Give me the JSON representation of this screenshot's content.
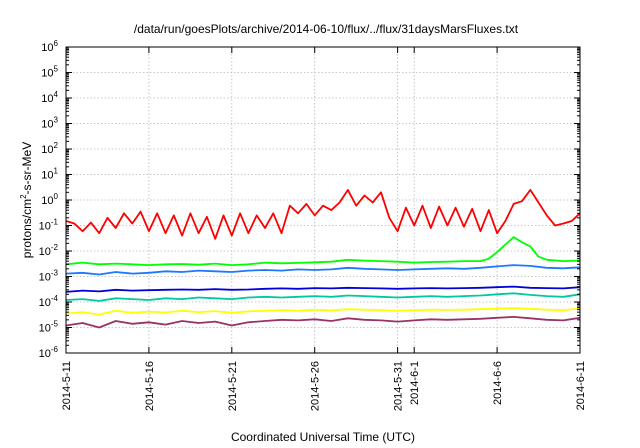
{
  "chart_data": {
    "type": "line",
    "title": "/data/run/goesPlots/archive/2014-06-10/flux/../flux/31daysMarsFluxes.txt",
    "xlabel": "Coordinated Universal Time (UTC)",
    "ylabel": {
      "base": "protons/cm",
      "sup": "2",
      "rest": "-s-sr-MeV"
    },
    "y_scale": "log",
    "ylim": [
      1e-06,
      1000000.0
    ],
    "xlim": [
      "2014-05-11",
      "2014-06-11"
    ],
    "grid": true,
    "legend": "none",
    "x_tick_labels": [
      "2014-5-11",
      "2014-5-16",
      "2014-5-21",
      "2014-5-26",
      "2014-5-31",
      "2014-6-1",
      "2014-6-6",
      "2014-6-11"
    ],
    "x_tick_days": [
      0,
      5,
      10,
      15,
      20,
      21,
      26,
      31
    ],
    "y_ticks": [
      {
        "value": 1e-06,
        "base": "10",
        "exp": "-6"
      },
      {
        "value": 1e-05,
        "base": "10",
        "exp": "-5"
      },
      {
        "value": 0.0001,
        "base": "10",
        "exp": "-4"
      },
      {
        "value": 0.001,
        "base": "10",
        "exp": "-3"
      },
      {
        "value": 0.01,
        "base": "10",
        "exp": "-2"
      },
      {
        "value": 0.1,
        "base": "10",
        "exp": "-1"
      },
      {
        "value": 1.0,
        "base": "10",
        "exp": "0"
      },
      {
        "value": 10.0,
        "base": "10",
        "exp": "1"
      },
      {
        "value": 100.0,
        "base": "10",
        "exp": "2"
      },
      {
        "value": 1000.0,
        "base": "10",
        "exp": "3"
      },
      {
        "value": 10000.0,
        "base": "10",
        "exp": "4"
      },
      {
        "value": 100000.0,
        "base": "10",
        "exp": "5"
      },
      {
        "value": 1000000.0,
        "base": "10",
        "exp": "6"
      }
    ],
    "series": [
      {
        "color": "#ff0000",
        "x": [
          0,
          0.5,
          1,
          1.5,
          2,
          2.5,
          3,
          3.5,
          4,
          4.5,
          5,
          5.5,
          6,
          6.5,
          7,
          7.5,
          8,
          8.5,
          9,
          9.5,
          10,
          10.5,
          11,
          11.5,
          12,
          12.5,
          13,
          13.5,
          14,
          14.5,
          15,
          15.5,
          16,
          16.5,
          17,
          17.5,
          18,
          18.5,
          19,
          19.5,
          20,
          20.5,
          21,
          21.5,
          22,
          22.5,
          23,
          23.5,
          24,
          24.5,
          25,
          25.5,
          26,
          26.5,
          27,
          27.5,
          28,
          28.5,
          29,
          29.5,
          30,
          30.5,
          31
        ],
        "y": [
          0.15,
          0.12,
          0.06,
          0.13,
          0.05,
          0.2,
          0.08,
          0.3,
          0.12,
          0.35,
          0.06,
          0.3,
          0.05,
          0.25,
          0.04,
          0.3,
          0.05,
          0.22,
          0.03,
          0.25,
          0.04,
          0.3,
          0.05,
          0.25,
          0.08,
          0.3,
          0.05,
          0.6,
          0.3,
          0.7,
          0.25,
          0.6,
          0.4,
          0.8,
          2.5,
          0.6,
          1.5,
          0.8,
          2.0,
          0.2,
          0.06,
          0.5,
          0.1,
          0.6,
          0.08,
          0.55,
          0.1,
          0.5,
          0.09,
          0.45,
          0.06,
          0.4,
          0.05,
          0.15,
          0.7,
          0.9,
          2.5,
          0.8,
          0.25,
          0.1,
          0.12,
          0.15,
          0.3
        ]
      },
      {
        "color": "#00ff00",
        "x": [
          0,
          1,
          2,
          3,
          4,
          5,
          6,
          7,
          8,
          9,
          10,
          11,
          12,
          13,
          14,
          15,
          16,
          17,
          18,
          19,
          20,
          21,
          22,
          23,
          24,
          25,
          25.5,
          26,
          26.5,
          27,
          27.5,
          28,
          28.5,
          29,
          30,
          31
        ],
        "y": [
          0.003,
          0.0035,
          0.003,
          0.0032,
          0.003,
          0.0028,
          0.003,
          0.0031,
          0.0029,
          0.0032,
          0.0028,
          0.003,
          0.0035,
          0.0033,
          0.0034,
          0.0036,
          0.0038,
          0.0045,
          0.0042,
          0.004,
          0.0038,
          0.0035,
          0.0037,
          0.0038,
          0.004,
          0.004,
          0.005,
          0.009,
          0.018,
          0.035,
          0.022,
          0.015,
          0.006,
          0.0045,
          0.004,
          0.0042
        ]
      },
      {
        "color": "#1e78ff",
        "x": [
          0,
          1,
          2,
          3,
          4,
          5,
          6,
          7,
          8,
          9,
          10,
          11,
          12,
          13,
          14,
          15,
          16,
          17,
          18,
          19,
          20,
          21,
          22,
          23,
          24,
          25,
          26,
          27,
          28,
          29,
          30,
          31
        ],
        "y": [
          0.0013,
          0.0014,
          0.0012,
          0.0015,
          0.0013,
          0.0014,
          0.0016,
          0.0015,
          0.0017,
          0.0016,
          0.0015,
          0.0017,
          0.0018,
          0.0017,
          0.0019,
          0.0018,
          0.0019,
          0.0022,
          0.002,
          0.0019,
          0.0018,
          0.0019,
          0.002,
          0.0021,
          0.002,
          0.0022,
          0.0025,
          0.0028,
          0.0026,
          0.0022,
          0.0021,
          0.0023
        ]
      },
      {
        "color": "#0000dd",
        "x": [
          0,
          1,
          2,
          3,
          4,
          5,
          6,
          7,
          8,
          9,
          10,
          11,
          12,
          13,
          14,
          15,
          16,
          17,
          18,
          19,
          20,
          21,
          22,
          23,
          24,
          25,
          26,
          27,
          28,
          29,
          30,
          31
        ],
        "y": [
          0.00025,
          0.00028,
          0.00026,
          0.0003,
          0.00028,
          0.00029,
          0.0003,
          0.00031,
          0.0003,
          0.00032,
          0.0003,
          0.00031,
          0.00033,
          0.00034,
          0.00033,
          0.00035,
          0.00034,
          0.00036,
          0.00035,
          0.00034,
          0.00033,
          0.00034,
          0.00035,
          0.00034,
          0.00035,
          0.00036,
          0.00038,
          0.0004,
          0.00036,
          0.00035,
          0.00034,
          0.00038
        ]
      },
      {
        "color": "#00c8a0",
        "x": [
          0,
          1,
          2,
          3,
          4,
          5,
          6,
          7,
          8,
          9,
          10,
          11,
          12,
          13,
          14,
          15,
          16,
          17,
          18,
          19,
          20,
          21,
          22,
          23,
          24,
          25,
          26,
          27,
          28,
          29,
          30,
          31
        ],
        "y": [
          0.00012,
          0.00013,
          0.00011,
          0.00014,
          0.00013,
          0.00012,
          0.00014,
          0.00013,
          0.00015,
          0.00014,
          0.00013,
          0.00015,
          0.00016,
          0.00015,
          0.00016,
          0.00017,
          0.00016,
          0.00018,
          0.00017,
          0.00016,
          0.00015,
          0.00016,
          0.00017,
          0.00016,
          0.00017,
          0.00018,
          0.0002,
          0.00022,
          0.00019,
          0.00017,
          0.00016,
          0.0002
        ]
      },
      {
        "color": "#ffff00",
        "x": [
          0,
          1,
          2,
          3,
          4,
          5,
          6,
          7,
          8,
          9,
          10,
          11,
          12,
          13,
          14,
          15,
          16,
          17,
          18,
          19,
          20,
          21,
          22,
          23,
          24,
          25,
          26,
          27,
          28,
          29,
          30,
          31
        ],
        "y": [
          3.5e-05,
          4e-05,
          3.2e-05,
          4.5e-05,
          3.8e-05,
          4.2e-05,
          3.9e-05,
          4.5e-05,
          4e-05,
          4.4e-05,
          3.8e-05,
          4.3e-05,
          4.5e-05,
          4.8e-05,
          4.6e-05,
          5e-05,
          4.7e-05,
          5.2e-05,
          5e-05,
          4.8e-05,
          4.6e-05,
          4.8e-05,
          5e-05,
          4.9e-05,
          5e-05,
          5.2e-05,
          5.5e-05,
          5.8e-05,
          5.4e-05,
          5e-05,
          4.8e-05,
          5.5e-05
        ]
      },
      {
        "color": "#993366",
        "x": [
          0,
          1,
          2,
          3,
          4,
          5,
          6,
          7,
          8,
          9,
          10,
          11,
          12,
          13,
          14,
          15,
          16,
          17,
          18,
          19,
          20,
          21,
          22,
          23,
          24,
          25,
          26,
          27,
          28,
          29,
          30,
          31
        ],
        "y": [
          1.2e-05,
          1.5e-05,
          1e-05,
          1.8e-05,
          1.4e-05,
          1.6e-05,
          1.3e-05,
          1.8e-05,
          1.5e-05,
          1.7e-05,
          1.2e-05,
          1.6e-05,
          1.8e-05,
          2e-05,
          1.9e-05,
          2.1e-05,
          1.8e-05,
          2.3e-05,
          2e-05,
          1.9e-05,
          1.7e-05,
          1.9e-05,
          2.1e-05,
          2e-05,
          2.1e-05,
          2.2e-05,
          2.4e-05,
          2.6e-05,
          2.3e-05,
          2e-05,
          1.9e-05,
          2.4e-05
        ]
      }
    ]
  }
}
